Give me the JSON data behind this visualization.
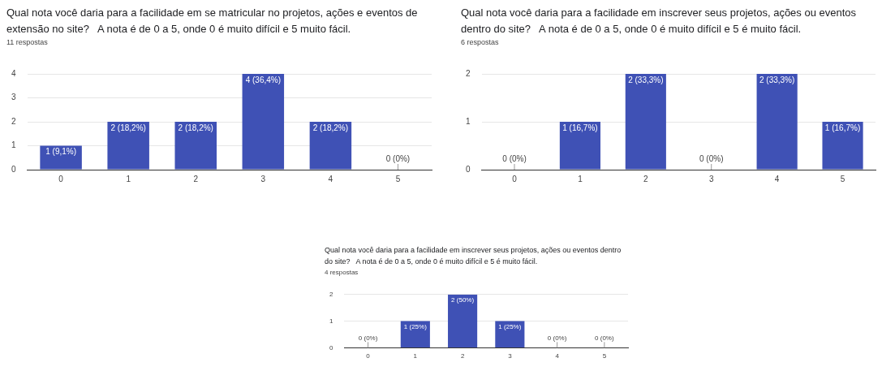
{
  "chart_data": [
    {
      "type": "bar",
      "title": "Qual nota você daria para a facilidade em se matricular no projetos, ações e eventos de extensão no site?   A nota é de 0 a 5, onde 0 é muito difícil e 5 muito fácil.",
      "subtitle": "11 respostas",
      "categories": [
        "0",
        "1",
        "2",
        "3",
        "4",
        "5"
      ],
      "values": [
        1,
        2,
        2,
        4,
        2,
        0
      ],
      "value_labels": [
        "1 (9,1%)",
        "2 (18,2%)",
        "2 (18,2%)",
        "4 (36,4%)",
        "2 (18,2%)",
        "0 (0%)"
      ],
      "color": "#3f51b5",
      "ylim": [
        0,
        4
      ],
      "yticks": [
        0,
        1,
        2,
        3,
        4
      ],
      "grid": "y"
    },
    {
      "type": "bar",
      "title": "Qual nota você daria para a facilidade em inscrever seus projetos, ações ou eventos dentro do site?   A nota é de 0 a 5, onde 0 é muito difícil e 5 é muito fácil.",
      "subtitle": "6 respostas",
      "categories": [
        "0",
        "1",
        "2",
        "3",
        "4",
        "5"
      ],
      "values": [
        0,
        1,
        2,
        0,
        2,
        1
      ],
      "value_labels": [
        "0 (0%)",
        "1 (16,7%)",
        "2 (33,3%)",
        "0 (0%)",
        "2 (33,3%)",
        "1 (16,7%)"
      ],
      "color": "#3f51b5",
      "ylim": [
        0,
        2
      ],
      "yticks": [
        0,
        1,
        2
      ],
      "grid": "y"
    },
    {
      "type": "bar",
      "title": "Qual nota você daria para a facilidade em inscrever seus projetos, ações ou eventos dentro do site?   A nota é de 0 a 5, onde 0 é muito difícil e 5 é muito fácil.",
      "subtitle": "4 respostas",
      "categories": [
        "0",
        "1",
        "2",
        "3",
        "4",
        "5"
      ],
      "values": [
        0,
        1,
        2,
        1,
        0,
        0
      ],
      "value_labels": [
        "0 (0%)",
        "1 (25%)",
        "2 (50%)",
        "1 (25%)",
        "0 (0%)",
        "0 (0%)"
      ],
      "color": "#3f51b5",
      "ylim": [
        0,
        2
      ],
      "yticks": [
        0,
        1,
        2
      ],
      "grid": "y"
    }
  ]
}
